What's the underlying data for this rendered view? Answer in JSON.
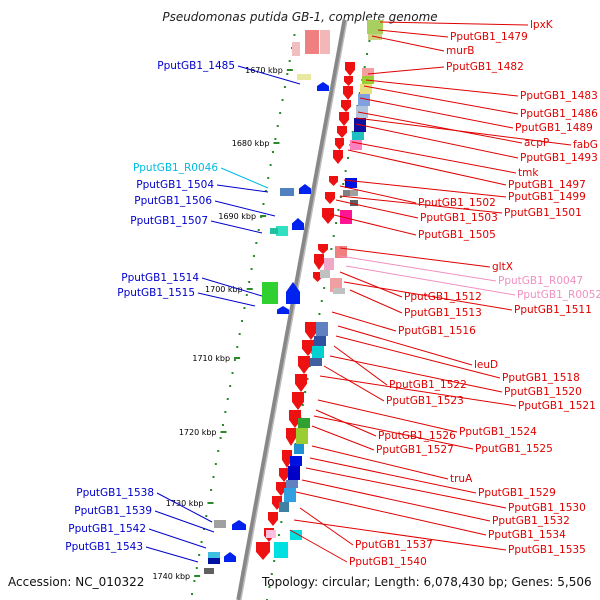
{
  "title": "Pseudomonas putida GB-1, complete genome",
  "footer": {
    "accession": "Accession: NC_010322",
    "stats": "Topology: circular; Length: 6,078,430 bp; Genes: 5,506"
  },
  "colors": {
    "minus_label": "#0000cc",
    "plus_label": "#e00000",
    "rna_label_cyan": "#00bbe0",
    "rna_label_pink": "#f090c0",
    "backbone": "#888888"
  },
  "ticks": [
    "1670 kbp",
    "1680 kbp",
    "1690 kbp",
    "1700 kbp",
    "1710 kbp",
    "1720 kbp",
    "1730 kbp",
    "1740 kbp"
  ],
  "left_labels": [
    {
      "text": "PputGB1_1485",
      "color": "blue"
    },
    {
      "text": "PputGB1_R0046",
      "color": "cyan"
    },
    {
      "text": "PputGB1_1504",
      "color": "blue"
    },
    {
      "text": "PputGB1_1506",
      "color": "blue"
    },
    {
      "text": "PputGB1_1507",
      "color": "blue"
    },
    {
      "text": "PputGB1_1514",
      "color": "blue"
    },
    {
      "text": "PputGB1_1515",
      "color": "blue"
    },
    {
      "text": "PputGB1_1538",
      "color": "blue"
    },
    {
      "text": "PputGB1_1539",
      "color": "blue"
    },
    {
      "text": "PputGB1_1542",
      "color": "blue"
    },
    {
      "text": "PputGB1_1543",
      "color": "blue"
    }
  ],
  "right_labels": [
    {
      "text": "lpxK",
      "color": "red"
    },
    {
      "text": "PputGB1_1479",
      "color": "red"
    },
    {
      "text": "murB",
      "color": "red"
    },
    {
      "text": "PputGB1_1482",
      "color": "red"
    },
    {
      "text": "PputGB1_1483",
      "color": "red"
    },
    {
      "text": "PputGB1_1486",
      "color": "red"
    },
    {
      "text": "PputGB1_1489",
      "color": "red"
    },
    {
      "text": "acpP",
      "color": "red"
    },
    {
      "text": "fabG",
      "color": "red"
    },
    {
      "text": "PputGB1_1493",
      "color": "red"
    },
    {
      "text": "tmk",
      "color": "red"
    },
    {
      "text": "PputGB1_1497",
      "color": "red"
    },
    {
      "text": "PputGB1_1499",
      "color": "red"
    },
    {
      "text": "PputGB1_1502",
      "color": "red"
    },
    {
      "text": "PputGB1_1501",
      "color": "red"
    },
    {
      "text": "PputGB1_1503",
      "color": "red"
    },
    {
      "text": "PputGB1_1505",
      "color": "red"
    },
    {
      "text": "gltX",
      "color": "red"
    },
    {
      "text": "PputGB1_R0047",
      "color": "pink"
    },
    {
      "text": "PputGB1_R0052",
      "color": "pink"
    },
    {
      "text": "PputGB1_1512",
      "color": "red"
    },
    {
      "text": "PputGB1_1511",
      "color": "red"
    },
    {
      "text": "PputGB1_1513",
      "color": "red"
    },
    {
      "text": "PputGB1_1516",
      "color": "red"
    },
    {
      "text": "leuD",
      "color": "red"
    },
    {
      "text": "PputGB1_1518",
      "color": "red"
    },
    {
      "text": "PputGB1_1522",
      "color": "red"
    },
    {
      "text": "PputGB1_1520",
      "color": "red"
    },
    {
      "text": "PputGB1_1523",
      "color": "red"
    },
    {
      "text": "PputGB1_1521",
      "color": "red"
    },
    {
      "text": "PputGB1_1524",
      "color": "red"
    },
    {
      "text": "PputGB1_1526",
      "color": "red"
    },
    {
      "text": "PputGB1_1525",
      "color": "red"
    },
    {
      "text": "PputGB1_1527",
      "color": "red"
    },
    {
      "text": "truA",
      "color": "red"
    },
    {
      "text": "PputGB1_1529",
      "color": "red"
    },
    {
      "text": "PputGB1_1530",
      "color": "red"
    },
    {
      "text": "PputGB1_1532",
      "color": "red"
    },
    {
      "text": "PputGB1_1534",
      "color": "red"
    },
    {
      "text": "PputGB1_1537",
      "color": "red"
    },
    {
      "text": "PputGB1_1535",
      "color": "red"
    },
    {
      "text": "PputGB1_1540",
      "color": "red"
    }
  ]
}
